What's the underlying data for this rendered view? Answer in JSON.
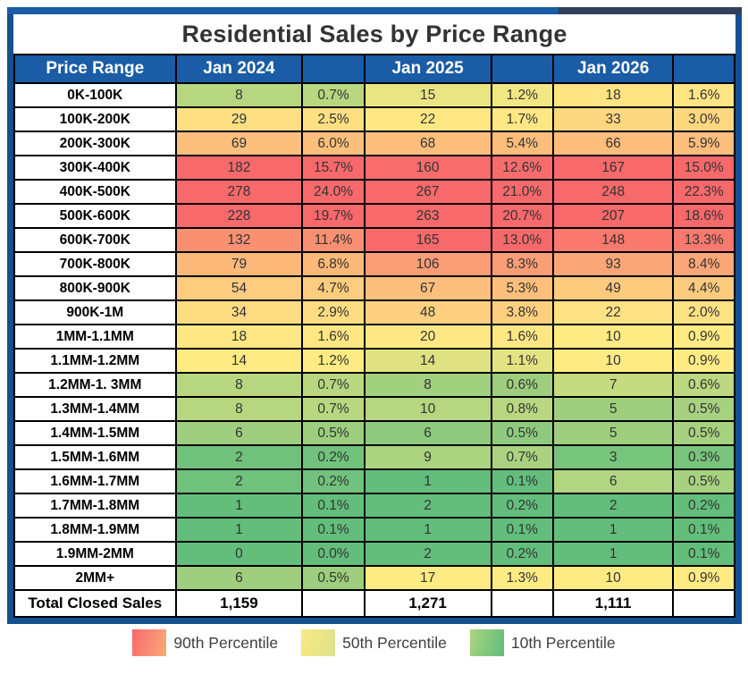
{
  "title": "Residential Sales by Price Range",
  "header": {
    "price_range": "Price Range",
    "years": [
      "Jan 2024",
      "Jan 2025",
      "Jan 2026"
    ]
  },
  "chart_data": {
    "type": "heatmap",
    "title": "Residential Sales by Price Range",
    "columns": [
      "Price Range",
      "Jan 2024",
      "Jan 2024 %",
      "Jan 2025",
      "Jan 2025 %",
      "Jan 2026",
      "Jan 2026 %"
    ],
    "rows": [
      {
        "label": "0K-100K",
        "counts": [
          8,
          15,
          18
        ],
        "pcts": [
          0.7,
          1.2,
          1.6
        ]
      },
      {
        "label": "100K-200K",
        "counts": [
          29,
          22,
          33
        ],
        "pcts": [
          2.5,
          1.7,
          3.0
        ]
      },
      {
        "label": "200K-300K",
        "counts": [
          69,
          68,
          66
        ],
        "pcts": [
          6.0,
          5.4,
          5.9
        ]
      },
      {
        "label": "300K-400K",
        "counts": [
          182,
          160,
          167
        ],
        "pcts": [
          15.7,
          12.6,
          15.0
        ]
      },
      {
        "label": "400K-500K",
        "counts": [
          278,
          267,
          248
        ],
        "pcts": [
          24.0,
          21.0,
          22.3
        ]
      },
      {
        "label": "500K-600K",
        "counts": [
          228,
          263,
          207
        ],
        "pcts": [
          19.7,
          20.7,
          18.6
        ]
      },
      {
        "label": "600K-700K",
        "counts": [
          132,
          165,
          148
        ],
        "pcts": [
          11.4,
          13.0,
          13.3
        ]
      },
      {
        "label": "700K-800K",
        "counts": [
          79,
          106,
          93
        ],
        "pcts": [
          6.8,
          8.3,
          8.4
        ]
      },
      {
        "label": "800K-900K",
        "counts": [
          54,
          67,
          49
        ],
        "pcts": [
          4.7,
          5.3,
          4.4
        ]
      },
      {
        "label": "900K-1M",
        "counts": [
          34,
          48,
          22
        ],
        "pcts": [
          2.9,
          3.8,
          2.0
        ]
      },
      {
        "label": "1MM-1.1MM",
        "counts": [
          18,
          20,
          10
        ],
        "pcts": [
          1.6,
          1.6,
          0.9
        ]
      },
      {
        "label": "1.1MM-1.2MM",
        "counts": [
          14,
          14,
          10
        ],
        "pcts": [
          1.2,
          1.1,
          0.9
        ]
      },
      {
        "label": "1.2MM-1. 3MM",
        "counts": [
          8,
          8,
          7
        ],
        "pcts": [
          0.7,
          0.6,
          0.6
        ]
      },
      {
        "label": "1.3MM-1.4MM",
        "counts": [
          8,
          10,
          5
        ],
        "pcts": [
          0.7,
          0.8,
          0.5
        ]
      },
      {
        "label": "1.4MM-1.5MM",
        "counts": [
          6,
          6,
          5
        ],
        "pcts": [
          0.5,
          0.5,
          0.5
        ]
      },
      {
        "label": "1.5MM-1.6MM",
        "counts": [
          2,
          9,
          3
        ],
        "pcts": [
          0.2,
          0.7,
          0.3
        ]
      },
      {
        "label": "1.6MM-1.7MM",
        "counts": [
          2,
          1,
          6
        ],
        "pcts": [
          0.2,
          0.1,
          0.5
        ]
      },
      {
        "label": "1.7MM-1.8MM",
        "counts": [
          1,
          2,
          2
        ],
        "pcts": [
          0.1,
          0.2,
          0.2
        ]
      },
      {
        "label": "1.8MM-1.9MM",
        "counts": [
          1,
          1,
          1
        ],
        "pcts": [
          0.1,
          0.1,
          0.1
        ]
      },
      {
        "label": "1.9MM-2MM",
        "counts": [
          0,
          2,
          1
        ],
        "pcts": [
          0.0,
          0.2,
          0.1
        ]
      },
      {
        "label": "2MM+",
        "counts": [
          6,
          17,
          10
        ],
        "pcts": [
          0.5,
          1.3,
          0.9
        ]
      }
    ],
    "totals": {
      "label": "Total Closed Sales",
      "values": [
        "1,159",
        "1,271",
        "1,111"
      ]
    },
    "color_scale": {
      "anchors": [
        "10th percentile",
        "50th percentile",
        "90th percentile"
      ],
      "min_green": "#63BE7B",
      "mid_yellow": "#FFEB84",
      "max_red": "#F8696B"
    }
  },
  "legend": [
    {
      "label": "90th Percentile",
      "swatch_from": "#F8696B",
      "swatch_to": "#FAAA7C"
    },
    {
      "label": "50th Percentile",
      "swatch_from": "#F9E984",
      "swatch_to": "#DDE28B"
    },
    {
      "label": "10th Percentile",
      "swatch_from": "#ACD47F",
      "swatch_to": "#5FBD7B"
    }
  ],
  "colors": {
    "header_blue": "#1A5CA6",
    "frame_blue": "#15508F",
    "top_bar_left_blue": "#1A5CA8",
    "top_bar_right_navy": "#32405E",
    "title_text": "#333333",
    "grid_line": "#000000"
  }
}
